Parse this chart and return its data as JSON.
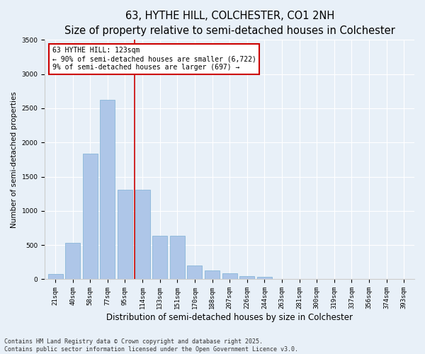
{
  "title": "63, HYTHE HILL, COLCHESTER, CO1 2NH",
  "subtitle": "Size of property relative to semi-detached houses in Colchester",
  "xlabel": "Distribution of semi-detached houses by size in Colchester",
  "ylabel": "Number of semi-detached properties",
  "bins": [
    "21sqm",
    "40sqm",
    "58sqm",
    "77sqm",
    "95sqm",
    "114sqm",
    "133sqm",
    "151sqm",
    "170sqm",
    "188sqm",
    "207sqm",
    "226sqm",
    "244sqm",
    "263sqm",
    "281sqm",
    "300sqm",
    "319sqm",
    "337sqm",
    "356sqm",
    "374sqm",
    "393sqm"
  ],
  "bar_heights": [
    75,
    530,
    1840,
    2620,
    1310,
    1310,
    640,
    640,
    200,
    130,
    90,
    50,
    35,
    10,
    0,
    0,
    0,
    0,
    0,
    0,
    0
  ],
  "bar_color": "#aec6e8",
  "bar_edge_color": "#7bafd4",
  "vline_x_index": 4.55,
  "vline_color": "#cc0000",
  "annotation_text": "63 HYTHE HILL: 123sqm\n← 90% of semi-detached houses are smaller (6,722)\n9% of semi-detached houses are larger (697) →",
  "annotation_box_color": "#ffffff",
  "annotation_box_edge": "#cc0000",
  "ylim": [
    0,
    3500
  ],
  "yticks": [
    0,
    500,
    1000,
    1500,
    2000,
    2500,
    3000,
    3500
  ],
  "background_color": "#e8f0f8",
  "plot_bg_color": "#e8f0f8",
  "footer": "Contains HM Land Registry data © Crown copyright and database right 2025.\nContains public sector information licensed under the Open Government Licence v3.0.",
  "title_fontsize": 10.5,
  "subtitle_fontsize": 9,
  "xlabel_fontsize": 8.5,
  "ylabel_fontsize": 7.5,
  "tick_fontsize": 6.5,
  "annotation_fontsize": 7,
  "footer_fontsize": 6
}
